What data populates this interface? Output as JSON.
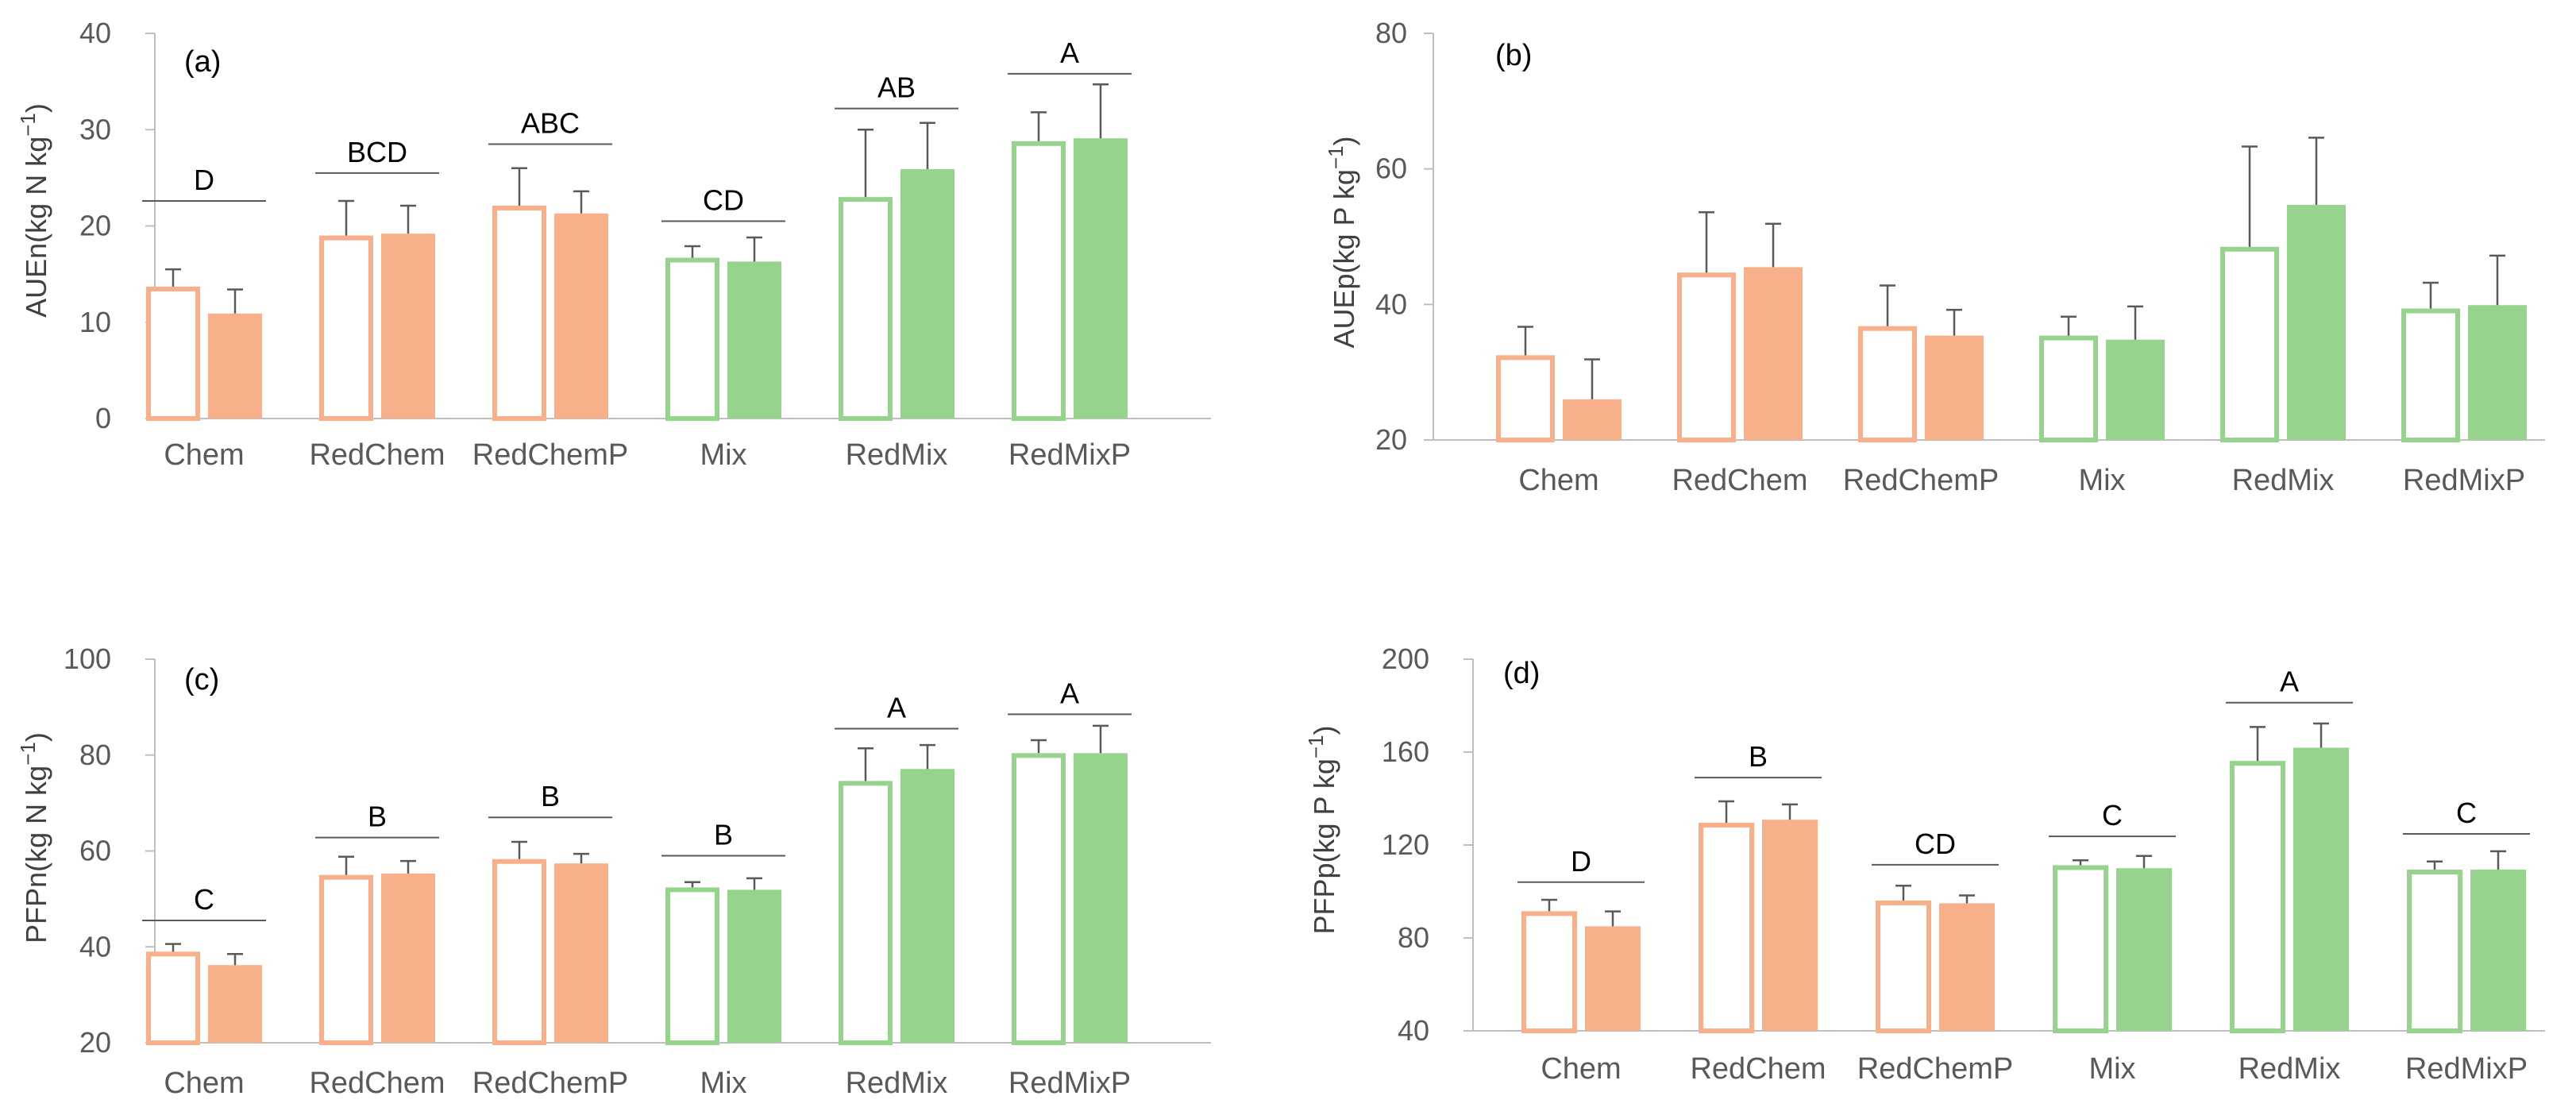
{
  "colors": {
    "chem": "#f8b08a",
    "mix": "#96d38c",
    "axis": "#bfbfbf",
    "errbar": "#595959",
    "sigline": "#595959"
  },
  "chart_data": [
    {
      "id": "a",
      "type": "bar",
      "panel_label": "(a)",
      "ylabel": "AUEn(kg N kg",
      "ylabel_sup": "−1",
      "ylabel_end": ")",
      "ylim": [
        0,
        40
      ],
      "ytick_step": 10,
      "categories": [
        "Chem",
        "RedChem",
        "RedChemP",
        "Mix",
        "RedMix",
        "RedMixP"
      ],
      "group": [
        "chem",
        "chem",
        "chem",
        "mix",
        "mix",
        "mix"
      ],
      "series": [
        {
          "name": "open",
          "values": [
            13.7,
            19.0,
            22.1,
            16.7,
            23.0,
            28.8
          ],
          "errors": [
            1.8,
            3.6,
            3.9,
            1.2,
            7.0,
            3.0
          ]
        },
        {
          "name": "filled",
          "values": [
            10.9,
            19.2,
            21.3,
            16.3,
            25.9,
            29.1
          ],
          "errors": [
            2.5,
            2.9,
            2.3,
            2.5,
            4.8,
            5.6
          ]
        }
      ],
      "significance": [
        "D",
        "BCD",
        "ABC",
        "CD",
        "AB",
        "A"
      ],
      "sig_level": [
        22.6,
        25.5,
        28.5,
        20.5,
        32.2,
        35.8
      ]
    },
    {
      "id": "b",
      "type": "bar",
      "panel_label": "(b)",
      "ylabel": "AUEp(kg P kg",
      "ylabel_sup": "−1",
      "ylabel_end": ")",
      "ylim": [
        20,
        80
      ],
      "ytick_step": 20,
      "categories": [
        "Chem",
        "RedChem",
        "RedChemP",
        "Mix",
        "RedMix",
        "RedMixP"
      ],
      "group": [
        "chem",
        "chem",
        "chem",
        "mix",
        "mix",
        "mix"
      ],
      "series": [
        {
          "name": "open",
          "values": [
            32.5,
            44.7,
            36.8,
            35.4,
            48.5,
            39.4
          ],
          "errors": [
            4.2,
            8.9,
            6.0,
            2.8,
            14.8,
            3.8
          ]
        },
        {
          "name": "filled",
          "values": [
            26.0,
            45.5,
            35.4,
            34.8,
            54.7,
            39.9
          ],
          "errors": [
            5.9,
            6.4,
            3.8,
            4.9,
            9.9,
            7.3
          ]
        }
      ],
      "significance": [
        "",
        "",
        "",
        "",
        "",
        ""
      ],
      "sig_level": [
        null,
        null,
        null,
        null,
        null,
        null
      ]
    },
    {
      "id": "c",
      "type": "bar",
      "panel_label": "(c)",
      "ylabel": "PFPn(kg N kg",
      "ylabel_sup": "−1",
      "ylabel_end": ")",
      "ylim": [
        20,
        100
      ],
      "ytick_step": 20,
      "categories": [
        "Chem",
        "RedChem",
        "RedChemP",
        "Mix",
        "RedMix",
        "RedMixP"
      ],
      "group": [
        "chem",
        "chem",
        "chem",
        "mix",
        "mix",
        "mix"
      ],
      "series": [
        {
          "name": "open",
          "values": [
            39.0,
            55.0,
            58.3,
            52.4,
            74.6,
            80.4
          ],
          "errors": [
            1.6,
            3.8,
            3.6,
            1.1,
            6.8,
            2.7
          ]
        },
        {
          "name": "filled",
          "values": [
            36.2,
            55.3,
            57.4,
            51.9,
            77.1,
            80.4
          ],
          "errors": [
            2.3,
            2.6,
            2.0,
            2.4,
            5.0,
            5.7
          ]
        }
      ],
      "significance": [
        "C",
        "B",
        "B",
        "B",
        "A",
        "A"
      ],
      "sig_level": [
        45.5,
        62.8,
        67.0,
        59.0,
        85.5,
        88.5
      ]
    },
    {
      "id": "d",
      "type": "bar",
      "panel_label": "(d)",
      "ylabel": "PFPp(kg P kg",
      "ylabel_sup": "−1",
      "ylabel_end": ")",
      "ylim": [
        40,
        200
      ],
      "ytick_step": 40,
      "categories": [
        "Chem",
        "RedChem",
        "RedChemP",
        "Mix",
        "RedMix",
        "RedMixP"
      ],
      "group": [
        "chem",
        "chem",
        "chem",
        "mix",
        "mix",
        "mix"
      ],
      "series": [
        {
          "name": "open",
          "values": [
            91.5,
            129.6,
            96.1,
            111.3,
            156.2,
            109.4
          ],
          "errors": [
            4.9,
            9.2,
            6.4,
            2.1,
            14.6,
            3.5
          ]
        },
        {
          "name": "filled",
          "values": [
            85.0,
            130.9,
            94.9,
            110.0,
            161.9,
            109.4
          ],
          "errors": [
            6.4,
            6.6,
            3.4,
            5.3,
            10.4,
            7.9
          ]
        }
      ],
      "significance": [
        "D",
        "B",
        "CD",
        "C",
        "A",
        "C"
      ],
      "sig_level": [
        104.0,
        149.0,
        111.5,
        123.7,
        181.3,
        124.8
      ]
    }
  ]
}
